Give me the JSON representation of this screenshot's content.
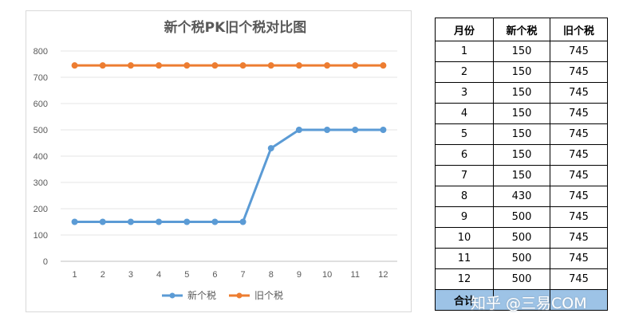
{
  "chart_data": {
    "type": "line",
    "title": "新个税PK旧个税对比图",
    "x": [
      "1",
      "2",
      "3",
      "4",
      "5",
      "6",
      "7",
      "8",
      "9",
      "10",
      "11",
      "12"
    ],
    "series": [
      {
        "name": "新个税",
        "color": "#5b9bd5",
        "values": [
          150,
          150,
          150,
          150,
          150,
          150,
          150,
          430,
          500,
          500,
          500,
          500
        ]
      },
      {
        "name": "旧个税",
        "color": "#ed7d31",
        "values": [
          745,
          745,
          745,
          745,
          745,
          745,
          745,
          745,
          745,
          745,
          745,
          745
        ]
      }
    ],
    "yticks": [
      0,
      100,
      200,
      300,
      400,
      500,
      600,
      700,
      800
    ],
    "ylim": [
      0,
      800
    ],
    "grid": true,
    "legend": "bottom"
  },
  "table": {
    "headers": [
      "月份",
      "新个税",
      "旧个税"
    ],
    "rows": [
      [
        "1",
        "150",
        "745"
      ],
      [
        "2",
        "150",
        "745"
      ],
      [
        "3",
        "150",
        "745"
      ],
      [
        "4",
        "150",
        "745"
      ],
      [
        "5",
        "150",
        "745"
      ],
      [
        "6",
        "150",
        "745"
      ],
      [
        "7",
        "150",
        "745"
      ],
      [
        "8",
        "430",
        "745"
      ],
      [
        "9",
        "500",
        "745"
      ],
      [
        "10",
        "500",
        "745"
      ],
      [
        "11",
        "500",
        "745"
      ],
      [
        "12",
        "500",
        "745"
      ]
    ],
    "total_label": "合计"
  },
  "watermark": "知乎 @三易COM"
}
